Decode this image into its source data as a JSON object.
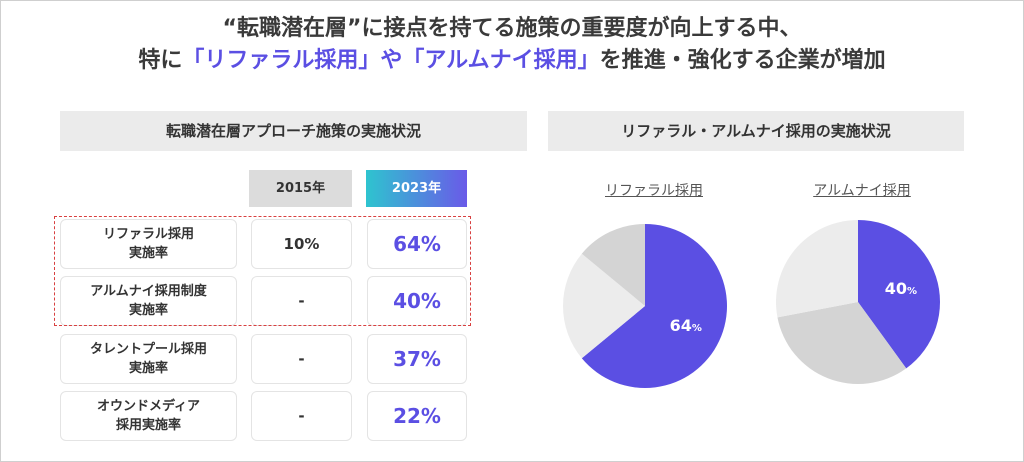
{
  "title": {
    "line1": "“転職潜在層”に接点を持てる施策の重要度が向上する中、",
    "line2_pre": "特に",
    "line2_hl": "「リファラル採用」や「アルムナイ採用」",
    "line2_post": "を推進・強化する企業が増加"
  },
  "table_section": {
    "header": "転職潜在層アプローチ施策の実施状況",
    "col_2015": "2015年",
    "col_2023": "2023年",
    "rows": [
      {
        "label_l1": "リファラル採用",
        "label_l2": "実施率",
        "v2015": "10%",
        "v2023": "64%"
      },
      {
        "label_l1": "アルムナイ採用制度",
        "label_l2": "実施率",
        "v2015": "-",
        "v2023": "40%"
      },
      {
        "label_l1": "タレントプール採用",
        "label_l2": "実施率",
        "v2015": "-",
        "v2023": "37%"
      },
      {
        "label_l1": "オウンドメディア",
        "label_l2": "採用実施率",
        "v2015": "-",
        "v2023": "22%"
      }
    ]
  },
  "pie_section": {
    "header": "リファラル・アルムナイ採用の実施状況"
  },
  "colors": {
    "accent": "#5b4fe3",
    "gradient_start": "#2ec4cf",
    "gradient_end": "#6a5ae8",
    "gray1": "#ececec",
    "gray2": "#d4d4d4",
    "highlight_box": "#d84040"
  },
  "chart_data": [
    {
      "type": "pie",
      "title": "リファラル採用",
      "values": [
        64,
        22,
        14
      ],
      "colors": [
        "#5b4fe3",
        "#ececec",
        "#d4d4d4"
      ],
      "label_value": "64",
      "label_unit": "%"
    },
    {
      "type": "pie",
      "title": "アルムナイ採用",
      "values": [
        40,
        32,
        28
      ],
      "colors": [
        "#5b4fe3",
        "#d4d4d4",
        "#ececec"
      ],
      "label_value": "40",
      "label_unit": "%"
    }
  ]
}
